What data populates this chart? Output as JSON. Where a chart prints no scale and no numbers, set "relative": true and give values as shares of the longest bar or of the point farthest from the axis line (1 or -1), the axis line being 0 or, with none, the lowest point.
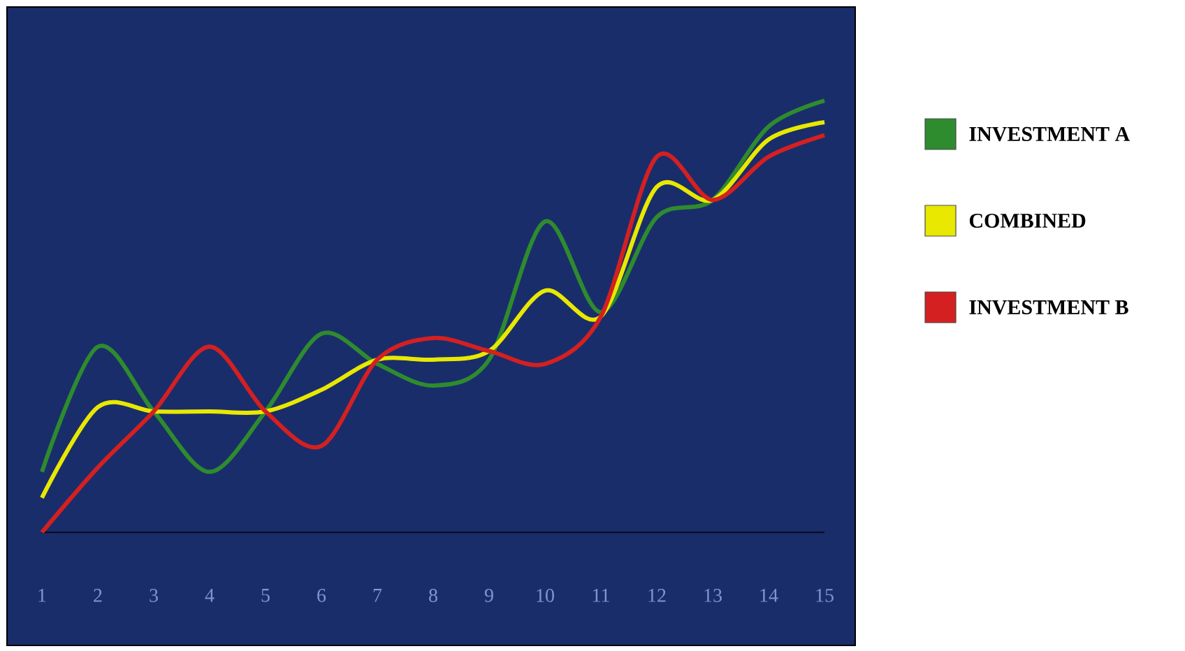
{
  "chart_data": {
    "type": "line",
    "relative": true,
    "legend": "right",
    "categories": [
      "1",
      "2",
      "3",
      "4",
      "5",
      "6",
      "7",
      "8",
      "9",
      "10",
      "11",
      "12",
      "13",
      "14",
      "15"
    ],
    "series": [
      {
        "name": "INVESTMENT A",
        "color": "#2e8b2e",
        "values": [
          0.14,
          0.43,
          0.28,
          0.14,
          0.28,
          0.46,
          0.39,
          0.34,
          0.4,
          0.72,
          0.51,
          0.73,
          0.77,
          0.94,
          1
        ]
      },
      {
        "name": "COMBINED",
        "color": "#e8e800",
        "values": [
          0.08,
          0.29,
          0.28,
          0.28,
          0.28,
          0.33,
          0.4,
          0.4,
          0.42,
          0.56,
          0.5,
          0.8,
          0.77,
          0.91,
          0.95
        ]
      },
      {
        "name": "INVESTMENT B",
        "color": "#d42020",
        "values": [
          0,
          0.15,
          0.28,
          0.43,
          0.28,
          0.2,
          0.4,
          0.45,
          0.42,
          0.39,
          0.5,
          0.87,
          0.77,
          0.87,
          0.92
        ]
      }
    ]
  }
}
